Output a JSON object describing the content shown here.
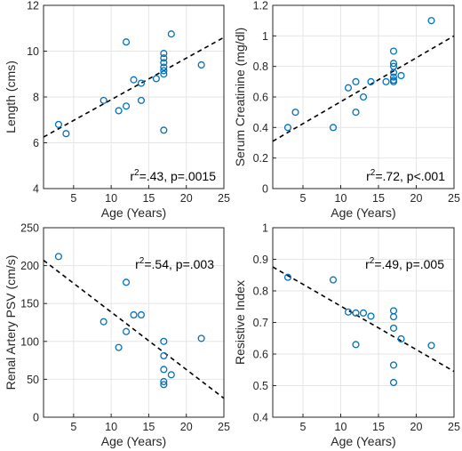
{
  "chart_data": [
    {
      "type": "scatter",
      "xlabel": "Age (Years)",
      "ylabel": "Length (cms)",
      "xlim": [
        1,
        25
      ],
      "ylim": [
        4,
        12
      ],
      "xticks": [
        5,
        10,
        15,
        20,
        25
      ],
      "yticks": [
        4,
        6,
        8,
        10,
        12
      ],
      "grid": true,
      "annotation": {
        "base": "r",
        "sup": "2",
        "rest": "=.43, p=.0015"
      },
      "fit": {
        "x": [
          1,
          25
        ],
        "y": [
          6.25,
          10.6
        ]
      },
      "points": [
        {
          "x": 3,
          "y": 6.8
        },
        {
          "x": 4,
          "y": 6.4
        },
        {
          "x": 9,
          "y": 7.85
        },
        {
          "x": 11,
          "y": 7.4
        },
        {
          "x": 12,
          "y": 10.4
        },
        {
          "x": 12,
          "y": 7.6
        },
        {
          "x": 13,
          "y": 8.75
        },
        {
          "x": 14,
          "y": 8.6
        },
        {
          "x": 14,
          "y": 7.85
        },
        {
          "x": 16,
          "y": 8.8
        },
        {
          "x": 17,
          "y": 9.9
        },
        {
          "x": 17,
          "y": 9.7
        },
        {
          "x": 17,
          "y": 9.5
        },
        {
          "x": 17,
          "y": 9.3
        },
        {
          "x": 17,
          "y": 9.15
        },
        {
          "x": 17,
          "y": 9.0
        },
        {
          "x": 17,
          "y": 6.55
        },
        {
          "x": 18,
          "y": 10.75
        },
        {
          "x": 22,
          "y": 9.4
        }
      ]
    },
    {
      "type": "scatter",
      "xlabel": "Age (Years)",
      "ylabel": "Serum Creatinine (mg/dl)",
      "xlim": [
        1,
        25
      ],
      "ylim": [
        0,
        1.2
      ],
      "xticks": [
        5,
        10,
        15,
        20,
        25
      ],
      "yticks": [
        0,
        0.2,
        0.4,
        0.6,
        0.8,
        1,
        1.2
      ],
      "ytick_labels": [
        "0",
        "0.2",
        "0.4",
        "0.6",
        "0.8",
        "1",
        "1.2"
      ],
      "grid": true,
      "annotation": {
        "base": "r",
        "sup": "2",
        "rest": "=.72, p<.001"
      },
      "fit": {
        "x": [
          1,
          25
        ],
        "y": [
          0.31,
          1.0
        ]
      },
      "points": [
        {
          "x": 3,
          "y": 0.4
        },
        {
          "x": 4,
          "y": 0.5
        },
        {
          "x": 9,
          "y": 0.4
        },
        {
          "x": 11,
          "y": 0.66
        },
        {
          "x": 12,
          "y": 0.7
        },
        {
          "x": 12,
          "y": 0.5
        },
        {
          "x": 13,
          "y": 0.6
        },
        {
          "x": 14,
          "y": 0.7
        },
        {
          "x": 16,
          "y": 0.7
        },
        {
          "x": 17,
          "y": 0.9
        },
        {
          "x": 17,
          "y": 0.82
        },
        {
          "x": 17,
          "y": 0.8
        },
        {
          "x": 17,
          "y": 0.76
        },
        {
          "x": 17,
          "y": 0.73
        },
        {
          "x": 17,
          "y": 0.71
        },
        {
          "x": 17,
          "y": 0.7
        },
        {
          "x": 18,
          "y": 0.74
        },
        {
          "x": 22,
          "y": 1.1
        }
      ]
    },
    {
      "type": "scatter",
      "xlabel": "Age (Years)",
      "ylabel": "Renal Artery PSV (cm/s)",
      "xlim": [
        1,
        25
      ],
      "ylim": [
        0,
        250
      ],
      "xticks": [
        5,
        10,
        15,
        20,
        25
      ],
      "yticks": [
        0,
        50,
        100,
        150,
        200,
        250
      ],
      "grid": true,
      "annotation": {
        "base": "r",
        "sup": "2",
        "rest": "=.54, p=.003"
      },
      "fit": {
        "x": [
          1,
          25
        ],
        "y": [
          207,
          25
        ]
      },
      "points": [
        {
          "x": 3,
          "y": 212
        },
        {
          "x": 9,
          "y": 126
        },
        {
          "x": 11,
          "y": 92
        },
        {
          "x": 12,
          "y": 178
        },
        {
          "x": 12,
          "y": 113
        },
        {
          "x": 13,
          "y": 135
        },
        {
          "x": 14,
          "y": 135
        },
        {
          "x": 17,
          "y": 100
        },
        {
          "x": 17,
          "y": 81
        },
        {
          "x": 17,
          "y": 63
        },
        {
          "x": 17,
          "y": 47
        },
        {
          "x": 17,
          "y": 43
        },
        {
          "x": 18,
          "y": 56
        },
        {
          "x": 22,
          "y": 104
        }
      ]
    },
    {
      "type": "scatter",
      "xlabel": "Age (Years)",
      "ylabel": "Resistive Index",
      "xlim": [
        1,
        25
      ],
      "ylim": [
        0.4,
        1.0
      ],
      "xticks": [
        5,
        10,
        15,
        20,
        25
      ],
      "yticks": [
        0.4,
        0.5,
        0.6,
        0.7,
        0.8,
        0.9,
        1.0
      ],
      "ytick_labels": [
        "0.4",
        "0.5",
        "0.6",
        "0.7",
        "0.8",
        "0.9",
        "1"
      ],
      "grid": true,
      "annotation": {
        "base": "r",
        "sup": "2",
        "rest": "=.49, p=.005"
      },
      "fit": {
        "x": [
          1,
          25
        ],
        "y": [
          0.876,
          0.545
        ]
      },
      "points": [
        {
          "x": 3,
          "y": 0.843
        },
        {
          "x": 9,
          "y": 0.835
        },
        {
          "x": 11,
          "y": 0.733
        },
        {
          "x": 12,
          "y": 0.73
        },
        {
          "x": 12,
          "y": 0.63
        },
        {
          "x": 13,
          "y": 0.73
        },
        {
          "x": 14,
          "y": 0.72
        },
        {
          "x": 17,
          "y": 0.737
        },
        {
          "x": 17,
          "y": 0.718
        },
        {
          "x": 17,
          "y": 0.682
        },
        {
          "x": 17,
          "y": 0.565
        },
        {
          "x": 17,
          "y": 0.51
        },
        {
          "x": 18,
          "y": 0.648
        },
        {
          "x": 22,
          "y": 0.627
        }
      ]
    }
  ]
}
